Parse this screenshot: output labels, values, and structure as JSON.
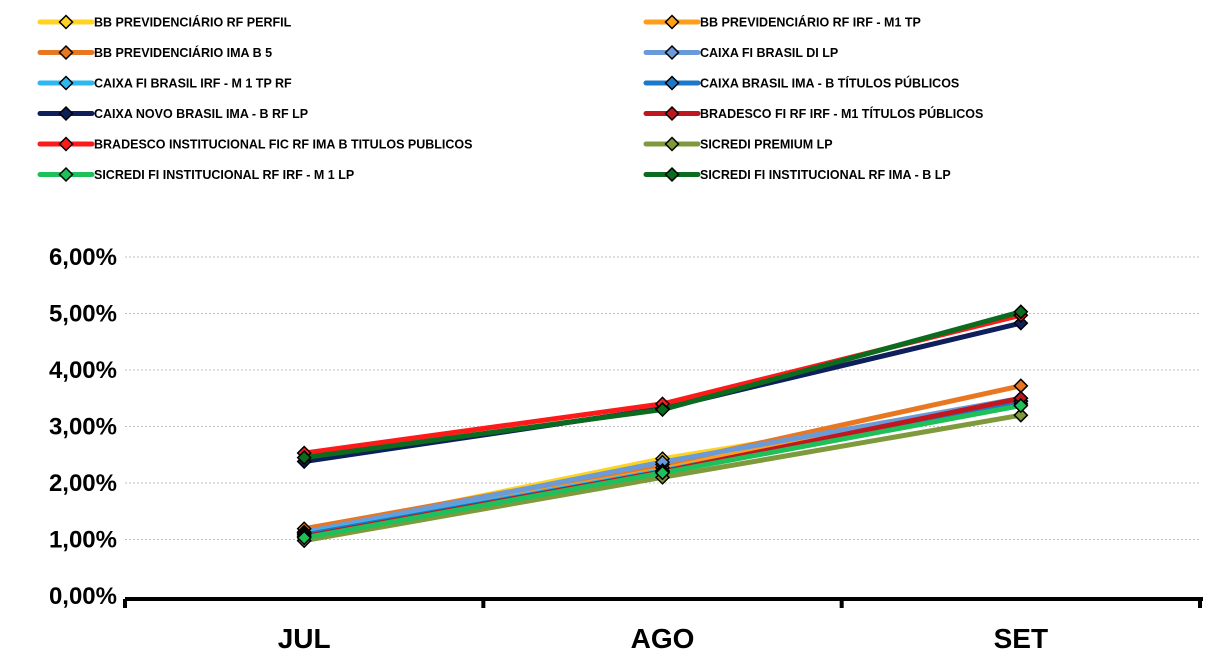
{
  "chart_data": {
    "type": "line",
    "categories": [
      "JUL",
      "AGO",
      "SET"
    ],
    "y_tick_labels": [
      "0,00%",
      "1,00%",
      "2,00%",
      "3,00%",
      "4,00%",
      "5,00%",
      "6,00%"
    ],
    "ylim": [
      0,
      6
    ],
    "grid": true,
    "legend_position": "top",
    "series": [
      {
        "name": "BB PREVIDENCIÁRIO RF PERFIL",
        "color": "#FFD320",
        "values": [
          1.13,
          2.43,
          3.45
        ]
      },
      {
        "name": "BB PREVIDENCIÁRIO RF IRF - M1 TP",
        "color": "#FF9E1B",
        "values": [
          1.13,
          2.27,
          3.45
        ]
      },
      {
        "name": "BB PREVIDENCIÁRIO IMA B 5",
        "color": "#E87722",
        "values": [
          1.19,
          2.33,
          3.72
        ]
      },
      {
        "name": "CAIXA FI BRASIL DI LP",
        "color": "#6A9BD8",
        "values": [
          1.13,
          2.37,
          3.5
        ]
      },
      {
        "name": "CAIXA FI BRASIL IRF - M 1 TP RF",
        "color": "#2EB8F0",
        "values": [
          1.1,
          2.22,
          3.4
        ]
      },
      {
        "name": "CAIXA BRASIL IMA - B TÍTULOS PÚBLICOS",
        "color": "#1E78C8",
        "values": [
          1.08,
          2.2,
          3.45
        ]
      },
      {
        "name": "CAIXA NOVO BRASIL IMA - B RF LP",
        "color": "#0E1F5B",
        "values": [
          2.38,
          3.32,
          4.83
        ]
      },
      {
        "name": "BRADESCO FI RF IRF - M1 TÍTULOS PÚBLICOS",
        "color": "#C0171E",
        "values": [
          1.05,
          2.2,
          3.5
        ]
      },
      {
        "name": "BRADESCO INSTITUCIONAL FIC RF IMA B TITULOS PUBLICOS",
        "color": "#FF1A1A",
        "values": [
          2.53,
          3.4,
          4.97
        ]
      },
      {
        "name": "SICREDI PREMIUM LP",
        "color": "#7F9A3C",
        "values": [
          0.98,
          2.1,
          3.2
        ]
      },
      {
        "name": "SICREDI FI INSTITUCIONAL RF IRF - M 1 LP",
        "color": "#1FBF5A",
        "values": [
          1.03,
          2.18,
          3.37
        ]
      },
      {
        "name": "SICREDI FI INSTITUCIONAL RF IMA - B LP",
        "color": "#0B6B1E",
        "values": [
          2.45,
          3.3,
          5.03
        ]
      }
    ]
  }
}
